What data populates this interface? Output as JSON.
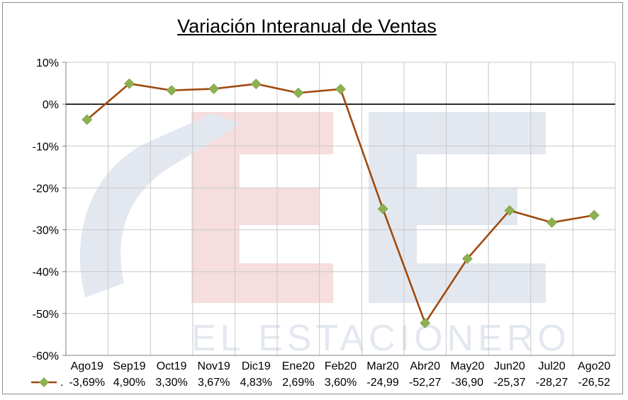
{
  "chart_data": {
    "type": "line",
    "title": "Variación Interanual de Ventas",
    "watermark": "EL ESTACIONERO",
    "categories": [
      "Ago19",
      "Sep19",
      "Oct19",
      "Nov19",
      "Dic19",
      "Ene20",
      "Feb20",
      "Mar20",
      "Abr20",
      "May20",
      "Jun20",
      "Jul20",
      "Ago20"
    ],
    "series": [
      {
        "values": [
          -3.69,
          4.9,
          3.3,
          3.67,
          4.83,
          2.69,
          3.6,
          -24.99,
          -52.27,
          -36.9,
          -25.37,
          -28.27,
          -26.52
        ],
        "color": "#9e4a0e",
        "marker_color": "#8db050"
      }
    ],
    "value_labels": [
      "-3,69%",
      "4,90%",
      "3,30%",
      "3,67%",
      "4,83%",
      "2,69%",
      "3,60%",
      "-24,99",
      "-52,27",
      "-36,90",
      "-25,37",
      "-28,27",
      "-26,52"
    ],
    "legend_key_label": ".",
    "ylim": [
      -60,
      10
    ],
    "yticks": [
      10,
      0,
      -10,
      -20,
      -30,
      -40,
      -50,
      -60
    ],
    "ytick_labels": [
      "10%",
      "0%",
      "-10%",
      "-20%",
      "-30%",
      "-40%",
      "-50%",
      "-60%"
    ],
    "grid": true,
    "colors": {
      "line": "#9e4a0e",
      "marker": "#8db050",
      "grid": "#c8c8c8",
      "zero_line": "#000000"
    }
  }
}
